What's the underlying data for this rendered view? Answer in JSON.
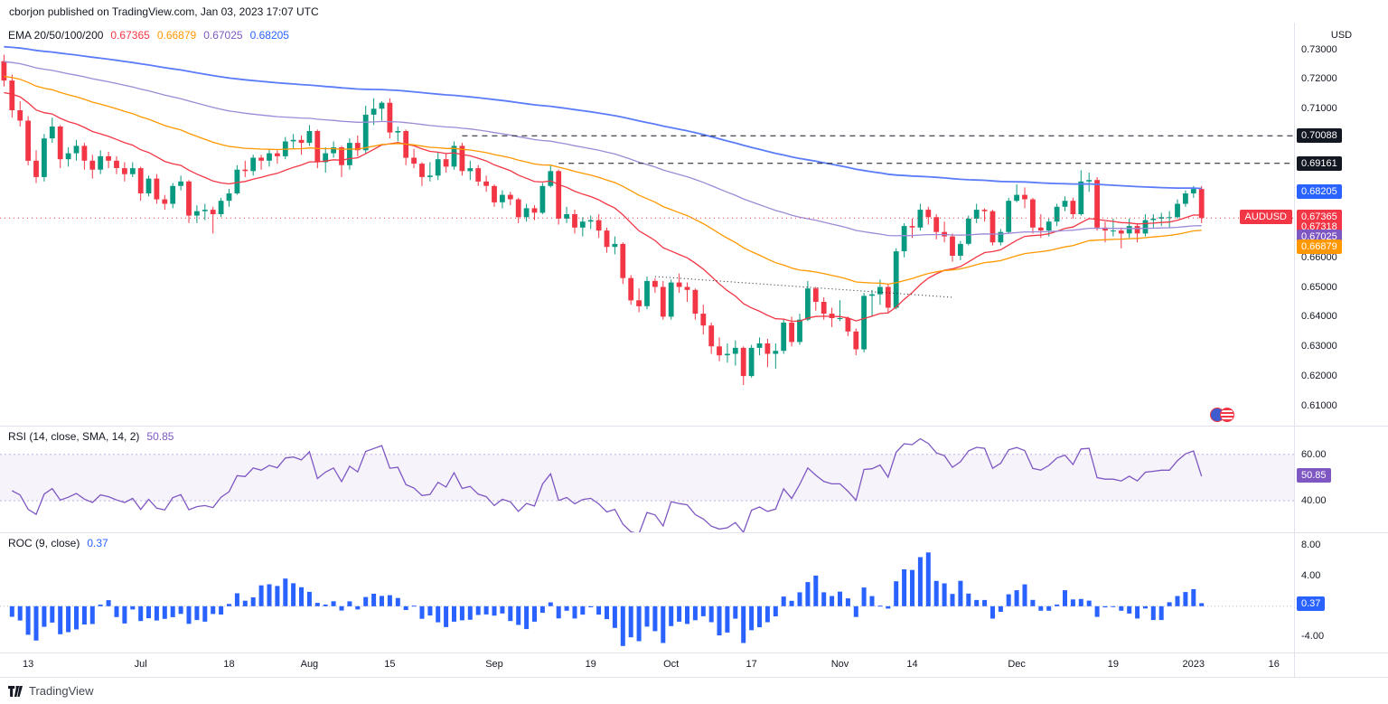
{
  "header": {
    "publish_text": "cborjon published on TradingView.com, Jan 03, 2023 17:07 UTC"
  },
  "footer": {
    "brand": "TradingView"
  },
  "symbol": {
    "name": "AUDUSD",
    "currency": "USD",
    "last_price": "0.67318"
  },
  "legends": {
    "ema": {
      "label": "EMA 20/50/100/200",
      "values": [
        {
          "text": "0.67365",
          "color": "#f23645"
        },
        {
          "text": "0.66879",
          "color": "#ff9800"
        },
        {
          "text": "0.67025",
          "color": "#7e57c2"
        },
        {
          "text": "0.68205",
          "color": "#2962ff"
        }
      ]
    },
    "rsi": {
      "label": "RSI (14, close, SMA, 14, 2)",
      "value": "50.85",
      "color": "#7e57c2"
    },
    "roc": {
      "label": "ROC (9, close)",
      "value": "0.37",
      "color": "#2962ff"
    }
  },
  "price_axis": {
    "ticks": [
      {
        "text": "0.73000",
        "value": 0.73
      },
      {
        "text": "0.72000",
        "value": 0.72
      },
      {
        "text": "0.71000",
        "value": 0.71
      },
      {
        "text": "0.66000",
        "value": 0.66
      },
      {
        "text": "0.65000",
        "value": 0.65
      },
      {
        "text": "0.64000",
        "value": 0.64
      },
      {
        "text": "0.63000",
        "value": 0.63
      },
      {
        "text": "0.62000",
        "value": 0.62
      },
      {
        "text": "0.61000",
        "value": 0.61
      }
    ],
    "badges": [
      {
        "text": "0.70088",
        "value": 0.70088,
        "bg": "#131722"
      },
      {
        "text": "0.69161",
        "value": 0.69161,
        "bg": "#131722"
      },
      {
        "text": "0.68205",
        "value": 0.68205,
        "bg": "#2962ff"
      },
      {
        "text": "0.67365",
        "value": 0.67365,
        "bg": "#f23645"
      },
      {
        "text": "0.67318",
        "value": 0.67318,
        "bg": "#f23645"
      },
      {
        "text": "0.67025",
        "value": 0.67025,
        "bg": "#7e57c2"
      },
      {
        "text": "0.66879",
        "value": 0.66879,
        "bg": "#ff9800"
      }
    ]
  },
  "rsi_axis": {
    "ticks": [
      {
        "text": "60.00",
        "value": 60
      },
      {
        "text": "40.00",
        "value": 40
      }
    ],
    "badge": {
      "text": "50.85",
      "value": 50.85,
      "bg": "#7e57c2"
    }
  },
  "roc_axis": {
    "ticks": [
      {
        "text": "8.00",
        "value": 8
      },
      {
        "text": "4.00",
        "value": 4
      },
      {
        "text": "-4.00",
        "value": -4
      }
    ],
    "badge": {
      "text": "0.37",
      "value": 0.37,
      "bg": "#2962ff"
    }
  },
  "time_axis": {
    "labels": [
      {
        "text": "13",
        "slot": 3
      },
      {
        "text": "Jul",
        "slot": 17
      },
      {
        "text": "18",
        "slot": 28
      },
      {
        "text": "Aug",
        "slot": 38
      },
      {
        "text": "15",
        "slot": 48
      },
      {
        "text": "Sep",
        "slot": 61
      },
      {
        "text": "19",
        "slot": 73
      },
      {
        "text": "Oct",
        "slot": 83
      },
      {
        "text": "17",
        "slot": 93
      },
      {
        "text": "Nov",
        "slot": 104
      },
      {
        "text": "14",
        "slot": 113
      },
      {
        "text": "Dec",
        "slot": 126
      },
      {
        "text": "19",
        "slot": 138
      },
      {
        "text": "2023",
        "slot": 148
      },
      {
        "text": "16",
        "slot": 158
      }
    ]
  },
  "chart_data": [
    {
      "type": "candlestick",
      "title": "AUDUSD daily candles with EMA 20/50/100/200 overlays",
      "ylim": [
        0.603,
        0.739
      ],
      "total_slots": 161,
      "colors": {
        "up": "#089981",
        "down": "#f23645"
      },
      "ema_periods": [
        20,
        50,
        100,
        200
      ],
      "ema_seeds": [
        0.715,
        0.721,
        0.726,
        0.731
      ],
      "ema_colors": [
        "#f23645",
        "#ff9800",
        "#9c8ad6",
        "#5b7cf9"
      ],
      "levels": [
        {
          "value": 0.70088,
          "from_slot": 57
        },
        {
          "value": 0.69161,
          "from_slot": 69
        }
      ],
      "last_price": 0.67318,
      "trendline": {
        "from_slot": 81,
        "from_price": 0.6535,
        "to_slot": 118,
        "to_price": 0.6465
      },
      "candles": [
        [
          0.726,
          0.7282,
          0.7175,
          0.7195
        ],
        [
          0.7195,
          0.7215,
          0.707,
          0.7095
        ],
        [
          0.7095,
          0.7125,
          0.704,
          0.706
        ],
        [
          0.706,
          0.7075,
          0.691,
          0.6925
        ],
        [
          0.6925,
          0.696,
          0.685,
          0.687
        ],
        [
          0.687,
          0.7015,
          0.6855,
          0.7
        ],
        [
          0.7,
          0.707,
          0.6985,
          0.704
        ],
        [
          0.704,
          0.7045,
          0.69,
          0.693
        ],
        [
          0.693,
          0.697,
          0.6905,
          0.695
        ],
        [
          0.695,
          0.6995,
          0.6925,
          0.6975
        ],
        [
          0.6975,
          0.6985,
          0.6895,
          0.6925
        ],
        [
          0.6925,
          0.6945,
          0.6865,
          0.6895
        ],
        [
          0.6895,
          0.696,
          0.688,
          0.694
        ],
        [
          0.694,
          0.6955,
          0.69,
          0.6925
        ],
        [
          0.6925,
          0.694,
          0.688,
          0.69
        ],
        [
          0.69,
          0.692,
          0.6855,
          0.688
        ],
        [
          0.688,
          0.692,
          0.687,
          0.69
        ],
        [
          0.69,
          0.6905,
          0.679,
          0.6815
        ],
        [
          0.6815,
          0.6875,
          0.6805,
          0.6865
        ],
        [
          0.6865,
          0.688,
          0.678,
          0.6795
        ],
        [
          0.6795,
          0.681,
          0.676,
          0.678
        ],
        [
          0.678,
          0.685,
          0.6765,
          0.684
        ],
        [
          0.684,
          0.6875,
          0.6825,
          0.6855
        ],
        [
          0.6855,
          0.686,
          0.6715,
          0.674
        ],
        [
          0.674,
          0.6775,
          0.6715,
          0.6755
        ],
        [
          0.6755,
          0.678,
          0.6725,
          0.676
        ],
        [
          0.676,
          0.677,
          0.668,
          0.6745
        ],
        [
          0.6745,
          0.68,
          0.6735,
          0.679
        ],
        [
          0.679,
          0.683,
          0.677,
          0.6815
        ],
        [
          0.6815,
          0.691,
          0.681,
          0.6895
        ],
        [
          0.6895,
          0.6925,
          0.687,
          0.689
        ],
        [
          0.689,
          0.6945,
          0.6875,
          0.6935
        ],
        [
          0.6935,
          0.6945,
          0.6895,
          0.6925
        ],
        [
          0.6925,
          0.6965,
          0.6905,
          0.695
        ],
        [
          0.695,
          0.696,
          0.6915,
          0.694
        ],
        [
          0.694,
          0.7005,
          0.693,
          0.699
        ],
        [
          0.699,
          0.7015,
          0.6965,
          0.6995
        ],
        [
          0.6995,
          0.701,
          0.6945,
          0.6985
        ],
        [
          0.6985,
          0.7045,
          0.6975,
          0.7025
        ],
        [
          0.7025,
          0.703,
          0.69,
          0.692
        ],
        [
          0.692,
          0.697,
          0.6885,
          0.695
        ],
        [
          0.695,
          0.699,
          0.6935,
          0.697
        ],
        [
          0.697,
          0.6975,
          0.687,
          0.691
        ],
        [
          0.691,
          0.7,
          0.6895,
          0.6985
        ],
        [
          0.6985,
          0.701,
          0.694,
          0.696
        ],
        [
          0.696,
          0.711,
          0.695,
          0.708
        ],
        [
          0.708,
          0.7135,
          0.7045,
          0.71
        ],
        [
          0.71,
          0.7125,
          0.706,
          0.712
        ],
        [
          0.712,
          0.7135,
          0.7,
          0.702
        ],
        [
          0.702,
          0.704,
          0.699,
          0.7025
        ],
        [
          0.7025,
          0.703,
          0.691,
          0.6935
        ],
        [
          0.6935,
          0.6965,
          0.69,
          0.6915
        ],
        [
          0.6915,
          0.692,
          0.684,
          0.687
        ],
        [
          0.687,
          0.692,
          0.6855,
          0.6875
        ],
        [
          0.6875,
          0.6955,
          0.686,
          0.693
        ],
        [
          0.693,
          0.695,
          0.6885,
          0.6905
        ],
        [
          0.6905,
          0.699,
          0.6895,
          0.6975
        ],
        [
          0.6975,
          0.6985,
          0.6875,
          0.689
        ],
        [
          0.689,
          0.6925,
          0.686,
          0.69
        ],
        [
          0.69,
          0.691,
          0.684,
          0.6855
        ],
        [
          0.6855,
          0.6875,
          0.682,
          0.684
        ],
        [
          0.684,
          0.6845,
          0.677,
          0.6785
        ],
        [
          0.6785,
          0.6825,
          0.6765,
          0.681
        ],
        [
          0.681,
          0.682,
          0.6775,
          0.6795
        ],
        [
          0.6795,
          0.68,
          0.6715,
          0.6735
        ],
        [
          0.6735,
          0.678,
          0.672,
          0.6765
        ],
        [
          0.6765,
          0.6775,
          0.6725,
          0.675
        ],
        [
          0.675,
          0.685,
          0.6745,
          0.684
        ],
        [
          0.684,
          0.691,
          0.6835,
          0.689
        ],
        [
          0.689,
          0.6895,
          0.671,
          0.673
        ],
        [
          0.673,
          0.677,
          0.6715,
          0.6745
        ],
        [
          0.6745,
          0.676,
          0.668,
          0.67
        ],
        [
          0.67,
          0.6735,
          0.667,
          0.672
        ],
        [
          0.672,
          0.674,
          0.6695,
          0.6725
        ],
        [
          0.6725,
          0.6745,
          0.6665,
          0.669
        ],
        [
          0.669,
          0.67,
          0.6615,
          0.6635
        ],
        [
          0.6635,
          0.667,
          0.661,
          0.6645
        ],
        [
          0.6645,
          0.665,
          0.651,
          0.653
        ],
        [
          0.653,
          0.654,
          0.644,
          0.6455
        ],
        [
          0.6455,
          0.6495,
          0.6415,
          0.6435
        ],
        [
          0.6435,
          0.6535,
          0.6425,
          0.652
        ],
        [
          0.652,
          0.653,
          0.648,
          0.65
        ],
        [
          0.65,
          0.652,
          0.639,
          0.64
        ],
        [
          0.64,
          0.6525,
          0.639,
          0.6515
        ],
        [
          0.6515,
          0.6545,
          0.648,
          0.65
        ],
        [
          0.65,
          0.6515,
          0.645,
          0.649
        ],
        [
          0.649,
          0.6495,
          0.639,
          0.641
        ],
        [
          0.641,
          0.644,
          0.634,
          0.637
        ],
        [
          0.637,
          0.638,
          0.6275,
          0.63
        ],
        [
          0.63,
          0.633,
          0.625,
          0.627
        ],
        [
          0.627,
          0.631,
          0.6245,
          0.6275
        ],
        [
          0.6275,
          0.632,
          0.6235,
          0.6295
        ],
        [
          0.6295,
          0.63,
          0.617,
          0.62
        ],
        [
          0.62,
          0.6305,
          0.6195,
          0.6295
        ],
        [
          0.6295,
          0.633,
          0.627,
          0.631
        ],
        [
          0.631,
          0.6325,
          0.623,
          0.6275
        ],
        [
          0.6275,
          0.631,
          0.6225,
          0.6285
        ],
        [
          0.6285,
          0.639,
          0.6275,
          0.638
        ],
        [
          0.638,
          0.64,
          0.63,
          0.6315
        ],
        [
          0.6315,
          0.641,
          0.6305,
          0.639
        ],
        [
          0.639,
          0.652,
          0.6385,
          0.6495
        ],
        [
          0.6495,
          0.65,
          0.642,
          0.645
        ],
        [
          0.645,
          0.6465,
          0.639,
          0.641
        ],
        [
          0.641,
          0.643,
          0.6365,
          0.6395
        ],
        [
          0.6395,
          0.6455,
          0.6385,
          0.6395
        ],
        [
          0.6395,
          0.64,
          0.6335,
          0.635
        ],
        [
          0.635,
          0.636,
          0.627,
          0.629
        ],
        [
          0.629,
          0.648,
          0.628,
          0.647
        ],
        [
          0.647,
          0.649,
          0.64,
          0.6475
        ],
        [
          0.6475,
          0.6525,
          0.644,
          0.65
        ],
        [
          0.65,
          0.651,
          0.6415,
          0.643
        ],
        [
          0.643,
          0.663,
          0.6425,
          0.662
        ],
        [
          0.662,
          0.6715,
          0.66,
          0.6705
        ],
        [
          0.6705,
          0.673,
          0.6665,
          0.67
        ],
        [
          0.67,
          0.678,
          0.669,
          0.676
        ],
        [
          0.676,
          0.677,
          0.671,
          0.6735
        ],
        [
          0.6735,
          0.6745,
          0.666,
          0.6685
        ],
        [
          0.6685,
          0.672,
          0.665,
          0.667
        ],
        [
          0.667,
          0.668,
          0.6585,
          0.6605
        ],
        [
          0.6605,
          0.6655,
          0.659,
          0.6645
        ],
        [
          0.6645,
          0.674,
          0.664,
          0.673
        ],
        [
          0.673,
          0.678,
          0.6715,
          0.676
        ],
        [
          0.676,
          0.6765,
          0.672,
          0.6755
        ],
        [
          0.6755,
          0.676,
          0.664,
          0.665
        ],
        [
          0.665,
          0.6695,
          0.664,
          0.6685
        ],
        [
          0.6685,
          0.68,
          0.668,
          0.679
        ],
        [
          0.679,
          0.6845,
          0.6785,
          0.681
        ],
        [
          0.681,
          0.6835,
          0.6765,
          0.6795
        ],
        [
          0.6795,
          0.68,
          0.668,
          0.67
        ],
        [
          0.67,
          0.6745,
          0.6665,
          0.669
        ],
        [
          0.669,
          0.673,
          0.667,
          0.672
        ],
        [
          0.672,
          0.678,
          0.6705,
          0.677
        ],
        [
          0.677,
          0.6805,
          0.6755,
          0.679
        ],
        [
          0.679,
          0.68,
          0.673,
          0.6745
        ],
        [
          0.6745,
          0.6893,
          0.674,
          0.6855
        ],
        [
          0.6855,
          0.6885,
          0.682,
          0.686
        ],
        [
          0.686,
          0.687,
          0.669,
          0.67
        ],
        [
          0.67,
          0.672,
          0.665,
          0.669
        ],
        [
          0.669,
          0.673,
          0.667,
          0.669
        ],
        [
          0.669,
          0.67,
          0.663,
          0.668
        ],
        [
          0.668,
          0.673,
          0.6665,
          0.6705
        ],
        [
          0.6705,
          0.6715,
          0.665,
          0.668
        ],
        [
          0.668,
          0.6745,
          0.667,
          0.6725
        ],
        [
          0.6725,
          0.6745,
          0.67,
          0.673
        ],
        [
          0.673,
          0.675,
          0.6705,
          0.6735
        ],
        [
          0.6735,
          0.6755,
          0.67,
          0.6735
        ],
        [
          0.6735,
          0.6795,
          0.673,
          0.678
        ],
        [
          0.678,
          0.6825,
          0.677,
          0.6815
        ],
        [
          0.6815,
          0.684,
          0.68,
          0.683
        ],
        [
          0.683,
          0.684,
          0.6715,
          0.6732
        ]
      ]
    },
    {
      "type": "line",
      "title": "RSI (14, close, SMA, 14, 2)",
      "period": 14,
      "ylim": [
        26,
        72
      ],
      "band": [
        40,
        60
      ],
      "current_value": 50.85,
      "color": "#7e57c2"
    },
    {
      "type": "bar",
      "title": "ROC (9, close)",
      "period": 9,
      "ylim": [
        -6.2,
        9.6
      ],
      "current_value": 0.37,
      "color": "#2962ff"
    }
  ]
}
